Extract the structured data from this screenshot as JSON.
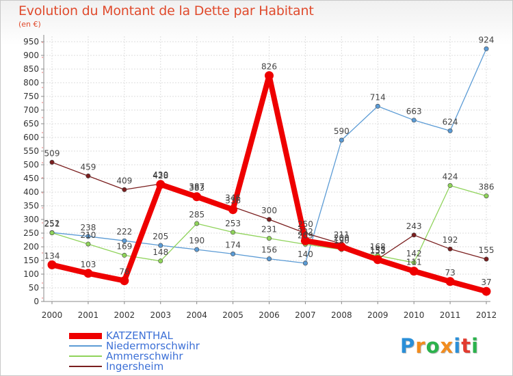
{
  "title": "Evolution du Montant de la Dette par Habitant",
  "subtitle": "(en €)",
  "brand": "Proxiti",
  "brand_colors": [
    "#2a8fd8",
    "#f28c1e",
    "#2bb24c",
    "#f28c1e",
    "#2a8fd8",
    "#e23b2f",
    "#2bb24c"
  ],
  "chart_data": {
    "type": "line",
    "x": [
      "2000",
      "2001",
      "2002",
      "2003",
      "2004",
      "2005",
      "2006",
      "2007",
      "2008",
      "2009",
      "2010",
      "2011",
      "2012"
    ],
    "ylim": [
      0,
      950
    ],
    "y_ticks": [
      0,
      50,
      100,
      150,
      200,
      250,
      300,
      350,
      400,
      450,
      500,
      550,
      600,
      650,
      700,
      750,
      800,
      850,
      900,
      950
    ],
    "grid": true,
    "legend_position": "bottom-left",
    "series": [
      {
        "name": "KATZENTHAL",
        "color": "#ee0000",
        "thick": true,
        "values": [
          134,
          103,
          76,
          428,
          383,
          336,
          826,
          222,
          200,
          153,
          111,
          73,
          37
        ]
      },
      {
        "name": "Niedermorschwihr",
        "color": "#5b9bd5",
        "thick": false,
        "values": [
          252,
          238,
          222,
          205,
          190,
          174,
          156,
          140,
          590,
          714,
          663,
          624,
          924
        ]
      },
      {
        "name": "Ammerschwihr",
        "color": "#8fd35a",
        "thick": false,
        "values": [
          251,
          210,
          169,
          148,
          285,
          253,
          231,
          209,
          190,
          168,
          142,
          424,
          386
        ]
      },
      {
        "name": "Ingersheim",
        "color": "#7a1e1e",
        "thick": false,
        "values": [
          509,
          459,
          409,
          430,
          387,
          346,
          300,
          250,
          211,
          155,
          243,
          192,
          155
        ]
      }
    ]
  }
}
